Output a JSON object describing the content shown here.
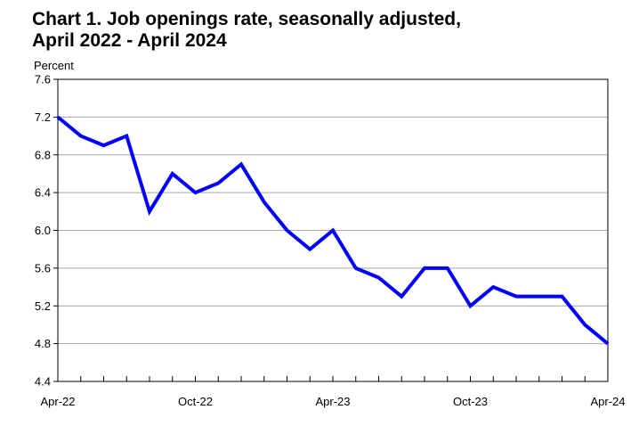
{
  "chart_data": {
    "type": "line",
    "title_lines": [
      "Chart 1. Job openings rate, seasonally adjusted,",
      "April 2022 - April 2024"
    ],
    "ylabel": "Percent",
    "xlabel": "",
    "ylim": [
      4.4,
      7.6
    ],
    "y_ticks": [
      "4.4",
      "4.8",
      "5.2",
      "5.6",
      "6.0",
      "6.4",
      "6.8",
      "7.2",
      "7.6"
    ],
    "x": [
      "Apr-22",
      "May-22",
      "Jun-22",
      "Jul-22",
      "Aug-22",
      "Sep-22",
      "Oct-22",
      "Nov-22",
      "Dec-22",
      "Jan-23",
      "Feb-23",
      "Mar-23",
      "Apr-23",
      "May-23",
      "Jun-23",
      "Jul-23",
      "Aug-23",
      "Sep-23",
      "Oct-23",
      "Nov-23",
      "Dec-23",
      "Jan-24",
      "Feb-24",
      "Mar-24",
      "Apr-24"
    ],
    "x_tick_labels": [
      {
        "index": 0,
        "label": "Apr-22"
      },
      {
        "index": 6,
        "label": "Oct-22"
      },
      {
        "index": 12,
        "label": "Apr-23"
      },
      {
        "index": 18,
        "label": "Oct-23"
      },
      {
        "index": 24,
        "label": "Apr-24"
      }
    ],
    "series": [
      {
        "values": [
          7.2,
          7.0,
          6.9,
          7.0,
          6.2,
          6.6,
          6.4,
          6.5,
          6.7,
          6.3,
          6.0,
          5.8,
          6.0,
          5.6,
          5.5,
          5.3,
          5.6,
          5.6,
          5.2,
          5.4,
          5.3,
          5.3,
          5.3,
          5.0,
          4.8
        ],
        "color": "#0000ff"
      }
    ],
    "grid": true,
    "legend": "none"
  }
}
